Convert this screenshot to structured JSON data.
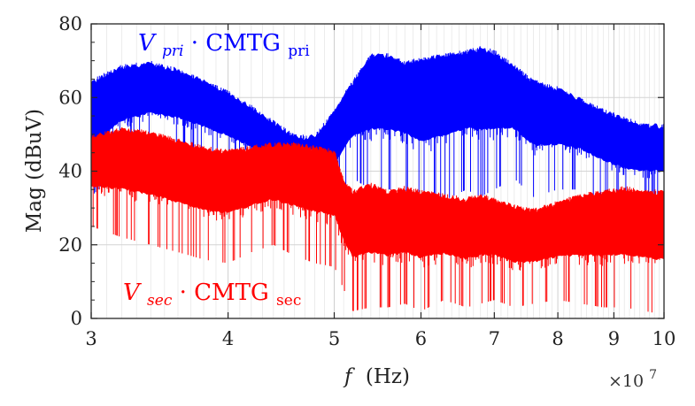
{
  "chart_data": {
    "type": "line",
    "x_scale": "log",
    "xlim": [
      30000000,
      100000000
    ],
    "ylim": [
      0,
      80
    ],
    "xlabel_symbol": "f",
    "xlabel_unit": "(Hz)",
    "ylabel": "Mag (dBuV)",
    "x_multiplier": "×10",
    "x_multiplier_exp": "7",
    "x_ticks": [
      3,
      4,
      5,
      6,
      7,
      8,
      9,
      10
    ],
    "y_ticks": [
      0,
      20,
      40,
      60,
      80
    ],
    "grid": true,
    "series": [
      {
        "label_base": "V",
        "label_sub": "pri",
        "label_tail": " · CMTG",
        "label_tail_sub": "pri",
        "color": "#0000ff",
        "x": [
          30000000,
          32000000,
          34000000,
          36000000,
          38000000,
          40000000,
          42000000,
          44000000,
          46000000,
          48000000,
          50000000,
          52000000,
          54000000,
          56000000,
          58000000,
          60000000,
          63000000,
          66000000,
          68000000,
          70000000,
          73000000,
          76000000,
          80000000,
          84000000,
          88000000,
          92000000,
          96000000,
          100000000
        ],
        "upper": [
          65,
          69,
          70,
          68,
          65,
          62,
          58,
          54,
          50,
          50,
          57,
          65,
          72,
          72,
          70,
          71,
          72,
          73,
          74,
          73,
          69,
          65,
          63,
          60,
          57,
          55,
          53,
          53
        ],
        "lower": [
          33,
          42,
          45,
          44,
          42,
          40,
          38,
          38,
          40,
          43,
          30,
          38,
          35,
          35,
          35,
          30,
          32,
          35,
          33,
          35,
          38,
          33,
          35,
          35,
          32,
          30,
          30,
          30
        ]
      },
      {
        "label_base": "V",
        "label_sub": "sec",
        "label_tail": " · CMTG",
        "label_tail_sub": "sec",
        "color": "#ff0000",
        "x": [
          30000000,
          32000000,
          34000000,
          36000000,
          38000000,
          40000000,
          42000000,
          44000000,
          46000000,
          48000000,
          50000000,
          51000000,
          52000000,
          54000000,
          56000000,
          58000000,
          60000000,
          63000000,
          66000000,
          68000000,
          70000000,
          73000000,
          76000000,
          80000000,
          84000000,
          88000000,
          92000000,
          96000000,
          100000000
        ],
        "upper": [
          50,
          52,
          51,
          49,
          47,
          46,
          47,
          48,
          48,
          47,
          46,
          38,
          35,
          37,
          35,
          36,
          35,
          34,
          33,
          34,
          33,
          31,
          30,
          32,
          34,
          35,
          36,
          35,
          35
        ],
        "lower": [
          25,
          22,
          20,
          18,
          16,
          15,
          18,
          20,
          17,
          15,
          14,
          8,
          2,
          3,
          3,
          4,
          2,
          5,
          3,
          4,
          5,
          3,
          4,
          5,
          4,
          3,
          3,
          2,
          1
        ]
      }
    ]
  }
}
